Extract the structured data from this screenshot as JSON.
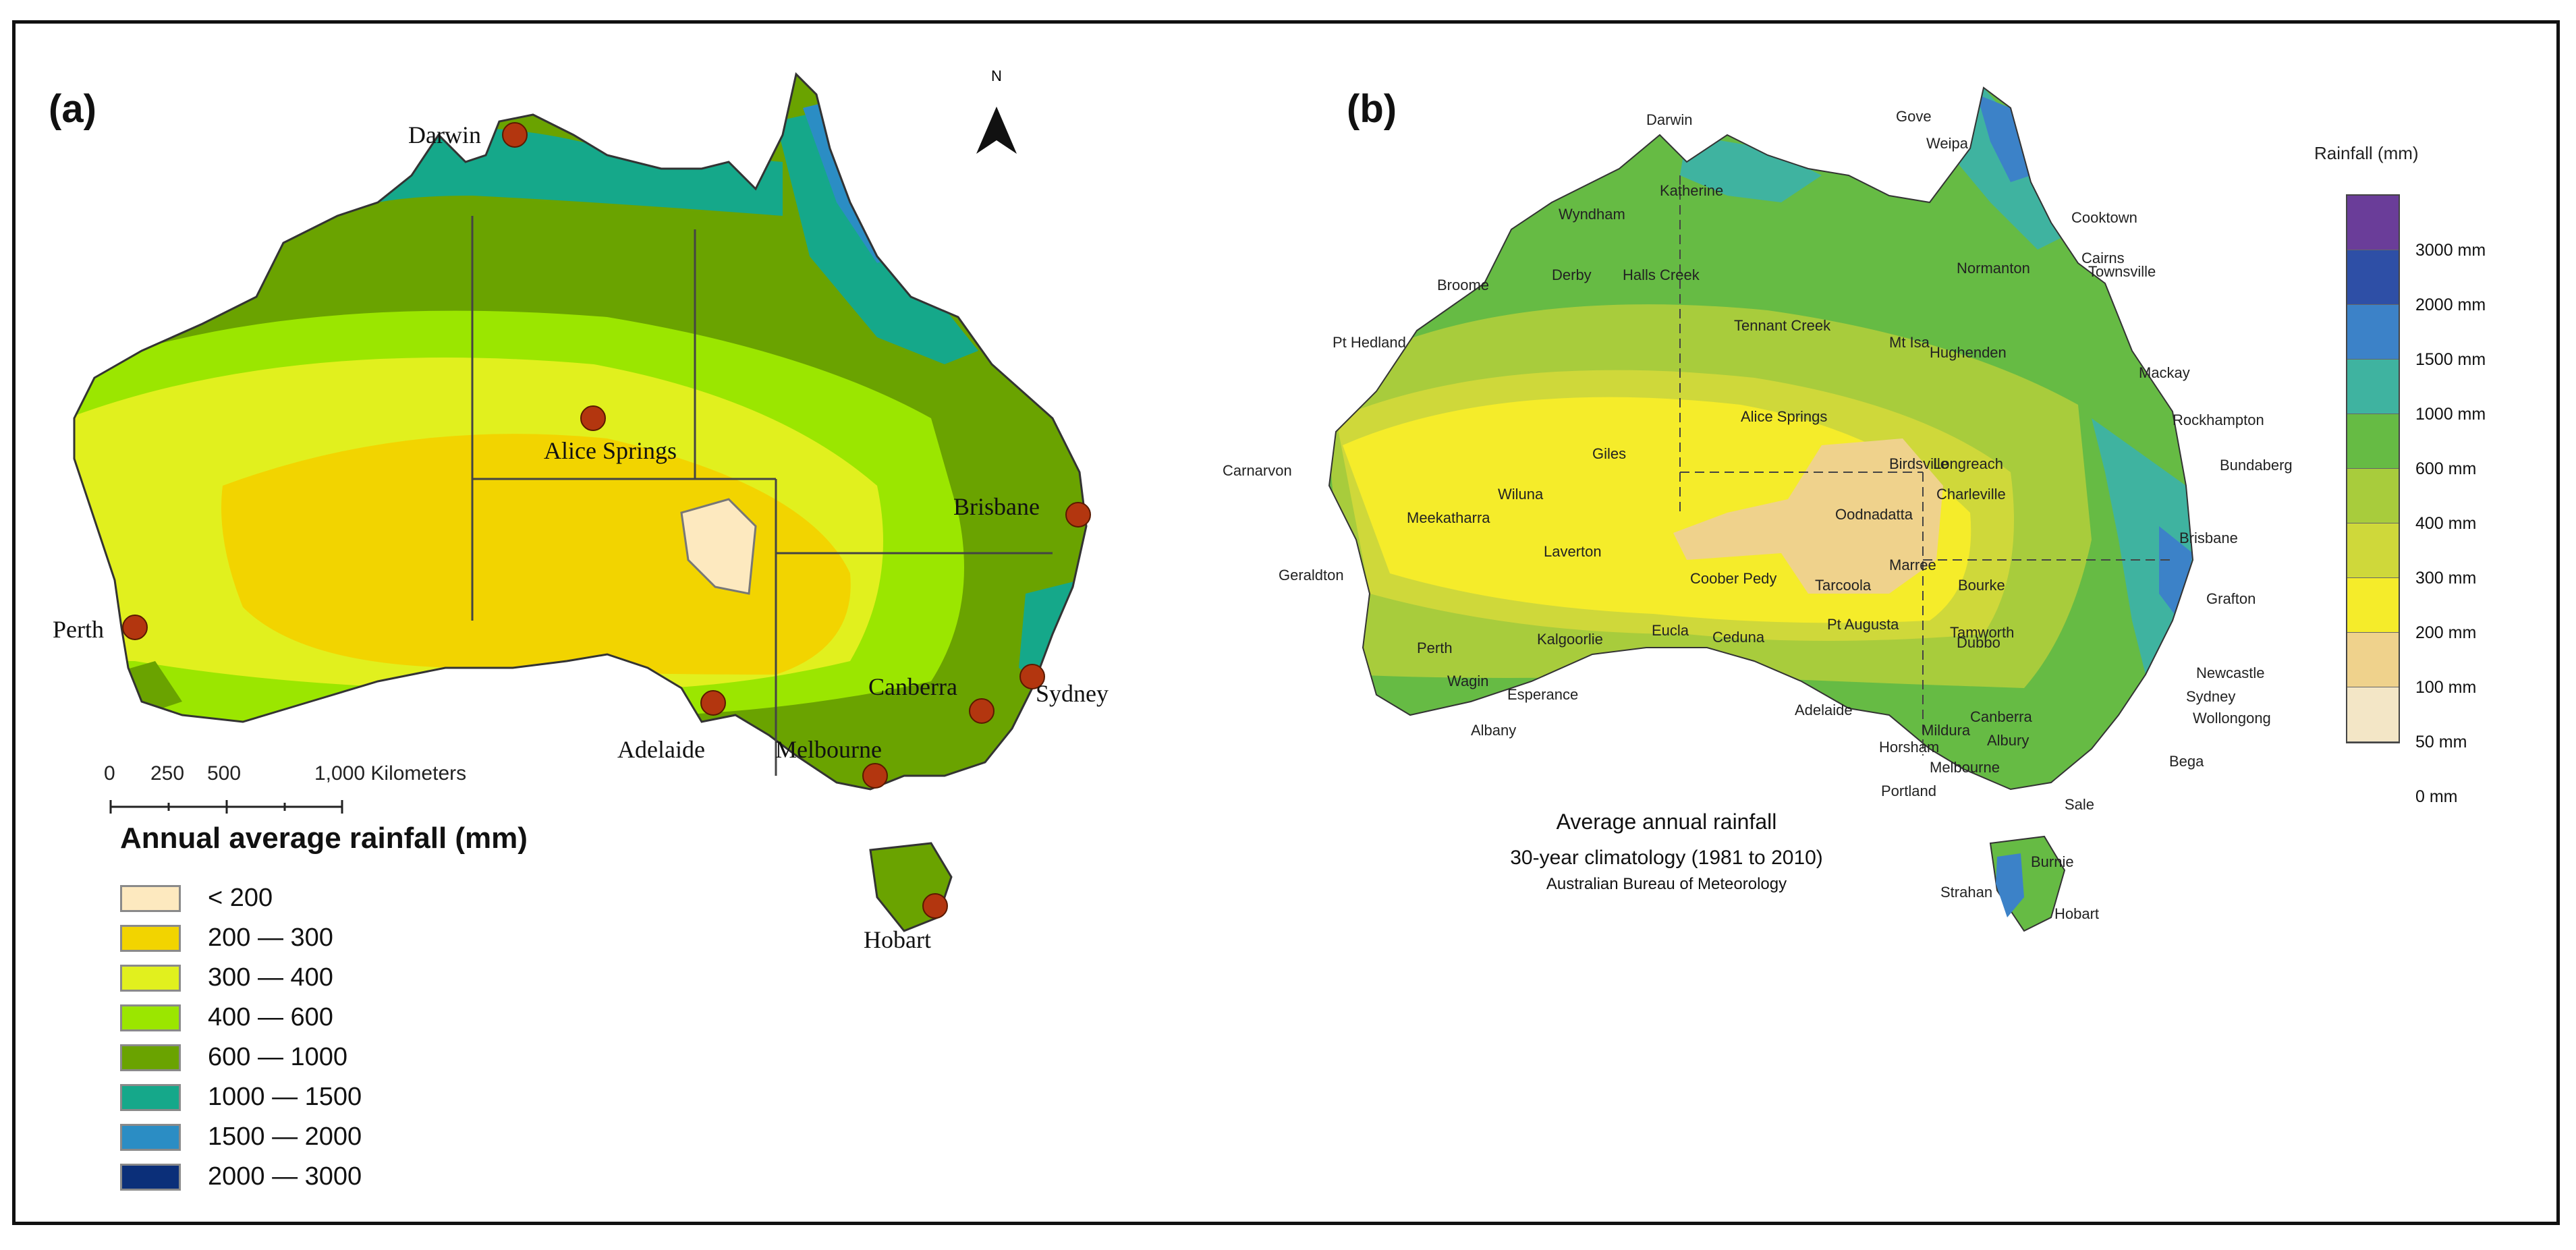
{
  "panel_a": {
    "label": "(a)",
    "north_label": "N",
    "scale": {
      "ticks": [
        "0",
        "250",
        "500",
        "1,000 Kilometers"
      ]
    },
    "legend": {
      "title": "Annual average rainfall (mm)",
      "items": [
        {
          "label": "< 200",
          "color": "#fde9bf"
        },
        {
          "label": "200 — 300",
          "color": "#f2d400"
        },
        {
          "label": "300 — 400",
          "color": "#e1f01e"
        },
        {
          "label": "400 — 600",
          "color": "#9be600"
        },
        {
          "label": "600 — 1000",
          "color": "#6aa300"
        },
        {
          "label": "1000 — 1500",
          "color": "#15a88a"
        },
        {
          "label": "1500 — 2000",
          "color": "#2b8dc4"
        },
        {
          "label": "2000 — 3000",
          "color": "#0b2f79"
        }
      ]
    },
    "cities": [
      "Darwin",
      "Alice Springs",
      "Brisbane",
      "Perth",
      "Sydney",
      "Canberra",
      "Adelaide",
      "Melbourne",
      "Hobart"
    ]
  },
  "panel_b": {
    "label": "(b)",
    "legend": {
      "title": "Rainfall (mm)",
      "ticks": [
        "3000 mm",
        "2000 mm",
        "1500 mm",
        "1000 mm",
        "600 mm",
        "400 mm",
        "300 mm",
        "200 mm",
        "100 mm",
        "50 mm",
        "0 mm"
      ],
      "colors": [
        "#6a3d99",
        "#2e4fa6",
        "#3c82c8",
        "#3fb3a0",
        "#66bb44",
        "#a8cc3c",
        "#cfd83a",
        "#f5ec2a",
        "#efd28c",
        "#f3e6c6",
        "#ffffff"
      ]
    },
    "caption": {
      "line1": "Average annual rainfall",
      "line2": "30-year climatology (1981 to 2010)",
      "line3": "Australian Bureau of Meteorology"
    },
    "places": [
      "Darwin",
      "Gove",
      "Weipa",
      "Cooktown",
      "Cairns",
      "Wyndham",
      "Katherine",
      "Normanton",
      "Townsville",
      "Broome",
      "Derby",
      "Halls Creek",
      "Mackay",
      "Pt Hedland",
      "Tennant Creek",
      "Mt Isa",
      "Hughenden",
      "Rockhampton",
      "Alice Springs",
      "Longreach",
      "Bundaberg",
      "Giles",
      "Birdsville",
      "Carnarvon",
      "Wiluna",
      "Charleville",
      "Meekatharra",
      "Oodnadatta",
      "Brisbane",
      "Laverton",
      "Marree",
      "Geraldton",
      "Coober Pedy",
      "Tarcoola",
      "Bourke",
      "Grafton",
      "Kalgoorlie",
      "Tamworth",
      "Perth",
      "Eucla",
      "Ceduna",
      "Pt Augusta",
      "Dubbo",
      "Wagin",
      "Newcastle",
      "Esperance",
      "Mildura",
      "Sydney",
      "Adelaide",
      "Canberra",
      "Wollongong",
      "Albany",
      "Horsham",
      "Albury",
      "Melbourne",
      "Bega",
      "Portland",
      "Sale",
      "Burnie",
      "Strahan",
      "Hobart"
    ]
  }
}
